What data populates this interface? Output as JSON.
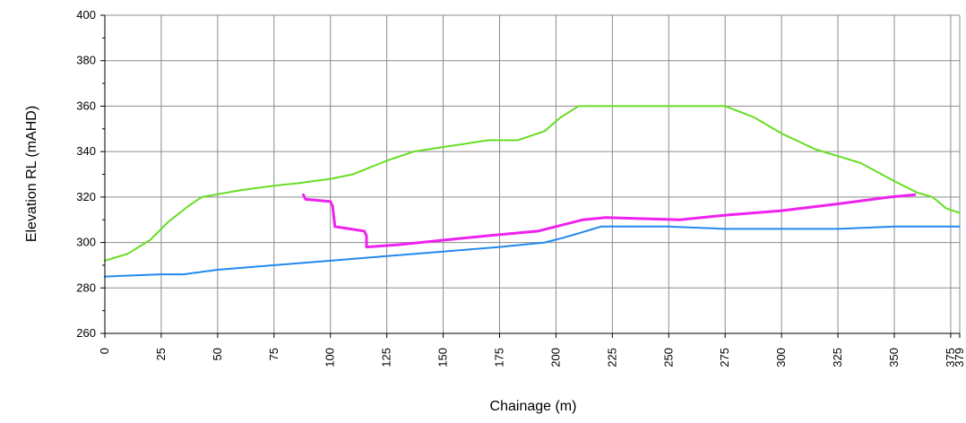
{
  "chart_data": {
    "type": "line",
    "title": "",
    "xlabel": "Chainage (m)",
    "ylabel": "Elevation RL (mAHD)",
    "xlim": [
      0,
      379
    ],
    "ylim": [
      260,
      400
    ],
    "x_ticks": [
      0,
      25,
      50,
      75,
      100,
      125,
      150,
      175,
      200,
      225,
      250,
      275,
      300,
      325,
      350,
      375,
      379
    ],
    "y_ticks": [
      260,
      280,
      300,
      320,
      340,
      360,
      380,
      400
    ],
    "x_tick_labels": [
      "0",
      "25",
      "50",
      "75",
      "100",
      "125",
      "150",
      "175",
      "200",
      "225",
      "250",
      "275",
      "300",
      "325",
      "350",
      "375",
      "379"
    ],
    "y_tick_labels": [
      "260",
      "280",
      "300",
      "320",
      "340",
      "360",
      "380",
      "400"
    ],
    "grid": true,
    "legend": "none",
    "series": [
      {
        "color": "#66dd22",
        "points": [
          [
            0,
            292
          ],
          [
            10,
            295
          ],
          [
            20,
            301
          ],
          [
            28,
            309
          ],
          [
            37,
            316
          ],
          [
            43,
            320
          ],
          [
            60,
            323
          ],
          [
            75,
            325
          ],
          [
            85,
            326
          ],
          [
            100,
            328
          ],
          [
            110,
            330
          ],
          [
            125,
            336
          ],
          [
            137,
            340
          ],
          [
            150,
            342
          ],
          [
            170,
            345
          ],
          [
            183,
            345
          ],
          [
            195,
            349
          ],
          [
            202,
            355
          ],
          [
            210,
            360
          ],
          [
            225,
            360
          ],
          [
            250,
            360
          ],
          [
            275,
            360
          ],
          [
            288,
            355
          ],
          [
            300,
            348
          ],
          [
            315,
            341
          ],
          [
            335,
            335
          ],
          [
            350,
            327
          ],
          [
            360,
            322
          ],
          [
            367,
            320
          ],
          [
            373,
            315
          ],
          [
            379,
            313
          ]
        ]
      },
      {
        "color": "#ee22ee",
        "points": [
          [
            88,
            321
          ],
          [
            89,
            319
          ],
          [
            100,
            318
          ],
          [
            101,
            316
          ],
          [
            102,
            307
          ],
          [
            115,
            305
          ],
          [
            116,
            303
          ],
          [
            116,
            298
          ],
          [
            130,
            299
          ],
          [
            150,
            301
          ],
          [
            170,
            303
          ],
          [
            192,
            305
          ],
          [
            200,
            307
          ],
          [
            212,
            310
          ],
          [
            222,
            311
          ],
          [
            255,
            310
          ],
          [
            275,
            312
          ],
          [
            300,
            314
          ],
          [
            325,
            317
          ],
          [
            348,
            320
          ],
          [
            359,
            321
          ]
        ]
      },
      {
        "color": "#2288ee",
        "points": [
          [
            0,
            285
          ],
          [
            25,
            286
          ],
          [
            35,
            286
          ],
          [
            50,
            288
          ],
          [
            75,
            290
          ],
          [
            100,
            292
          ],
          [
            125,
            294
          ],
          [
            150,
            296
          ],
          [
            175,
            298
          ],
          [
            195,
            300
          ],
          [
            203,
            302
          ],
          [
            210,
            304
          ],
          [
            220,
            307
          ],
          [
            225,
            307
          ],
          [
            250,
            307
          ],
          [
            275,
            306
          ],
          [
            300,
            306
          ],
          [
            325,
            306
          ],
          [
            350,
            307
          ],
          [
            379,
            307
          ]
        ]
      }
    ]
  }
}
